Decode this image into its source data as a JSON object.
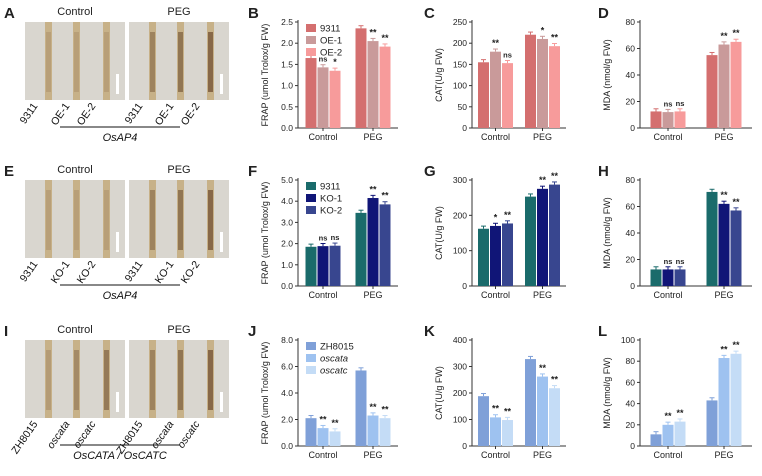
{
  "colors": {
    "rowA": [
      "#d46f6f",
      "#c99a9a",
      "#f79b9b"
    ],
    "rowE": [
      "#1a6b6b",
      "#101577",
      "#38468f"
    ],
    "rowI": [
      "#7fa0d8",
      "#9ec2f0",
      "#c4dcf6"
    ],
    "axis": "#333333",
    "photo_bg": "#d9d6cf",
    "strip_light": "#c4ad80",
    "strip_dark": "#7b5c3d"
  },
  "panels": {
    "A": {
      "letter": "A",
      "control_label": "Control",
      "peg_label": "PEG",
      "lines": [
        "9311",
        "OE-1",
        "OE-2"
      ],
      "gene": "OsAP4"
    },
    "E": {
      "letter": "E",
      "control_label": "Control",
      "peg_label": "PEG",
      "lines": [
        "9311",
        "KO-1",
        "KO-2"
      ],
      "gene": "OsAP4"
    },
    "I": {
      "letter": "I",
      "control_label": "Control",
      "peg_label": "PEG",
      "lines": [
        "ZH8015",
        "oscata",
        "oscatc"
      ],
      "gene": "OsCATA / OsCATC"
    }
  },
  "chart_data": [
    {
      "id": "B",
      "letter": "B",
      "type": "bar",
      "row": 0,
      "col": 0,
      "categories": [
        "Control",
        "PEG"
      ],
      "series": [
        {
          "name": "9311",
          "values": [
            1.65,
            2.35
          ]
        },
        {
          "name": "OE-1",
          "values": [
            1.43,
            2.05
          ]
        },
        {
          "name": "OE-2",
          "values": [
            1.35,
            1.92
          ]
        }
      ],
      "annotations": [
        [
          "",
          "ns",
          "*"
        ],
        [
          "",
          "**",
          "**"
        ]
      ],
      "ylabel": "FRAP (umol Trolox/g FW)",
      "ylim": [
        0,
        2.5
      ],
      "yticks": [
        "0.0",
        "0.5",
        "1.0",
        "1.5",
        "2.0",
        "2.5"
      ],
      "show_legend": true
    },
    {
      "id": "C",
      "letter": "C",
      "type": "bar",
      "row": 0,
      "col": 1,
      "categories": [
        "Control",
        "PEG"
      ],
      "series": [
        {
          "values": [
            155,
            220
          ]
        },
        {
          "values": [
            180,
            210
          ]
        },
        {
          "values": [
            153,
            193
          ]
        }
      ],
      "annotations": [
        [
          "",
          "**",
          "ns"
        ],
        [
          "",
          "*",
          "**"
        ]
      ],
      "ylabel": "CAT(U/g FW)",
      "ylim": [
        0,
        250
      ],
      "yticks": [
        "0",
        "50",
        "100",
        "150",
        "200",
        "250"
      ],
      "show_legend": false
    },
    {
      "id": "D",
      "letter": "D",
      "type": "bar",
      "row": 0,
      "col": 2,
      "categories": [
        "Control",
        "PEG"
      ],
      "series": [
        {
          "values": [
            12.5,
            55
          ]
        },
        {
          "values": [
            12,
            63
          ]
        },
        {
          "values": [
            12.5,
            65
          ]
        }
      ],
      "annotations": [
        [
          "",
          "ns",
          "ns"
        ],
        [
          "",
          "**",
          "**"
        ]
      ],
      "ylabel": "MDA (nmol/g FW)",
      "ylim": [
        0,
        80
      ],
      "yticks": [
        "0",
        "20",
        "40",
        "60",
        "80"
      ],
      "show_legend": false
    },
    {
      "id": "F",
      "letter": "F",
      "type": "bar",
      "row": 1,
      "col": 0,
      "categories": [
        "Control",
        "PEG"
      ],
      "series": [
        {
          "name": "9311",
          "values": [
            1.85,
            3.45
          ]
        },
        {
          "name": "KO-1",
          "values": [
            1.88,
            4.15
          ]
        },
        {
          "name": "KO-2",
          "values": [
            1.9,
            3.85
          ]
        }
      ],
      "annotations": [
        [
          "",
          "ns",
          "ns"
        ],
        [
          "",
          "**",
          "**"
        ]
      ],
      "ylabel": "FRAP (umol Trolox/g FW)",
      "ylim": [
        0,
        5
      ],
      "yticks": [
        "0.0",
        "1.0",
        "2.0",
        "3.0",
        "4.0",
        "5.0"
      ],
      "show_legend": true
    },
    {
      "id": "G",
      "letter": "G",
      "type": "bar",
      "row": 1,
      "col": 1,
      "categories": [
        "Control",
        "PEG"
      ],
      "series": [
        {
          "values": [
            162,
            253
          ]
        },
        {
          "values": [
            170,
            275
          ]
        },
        {
          "values": [
            177,
            287
          ]
        }
      ],
      "annotations": [
        [
          "",
          "*",
          "**"
        ],
        [
          "",
          "**",
          "**"
        ]
      ],
      "ylabel": "CAT(U/g FW)",
      "ylim": [
        0,
        300
      ],
      "yticks": [
        "0",
        "100",
        "200",
        "300"
      ],
      "show_legend": false
    },
    {
      "id": "H",
      "letter": "H",
      "type": "bar",
      "row": 1,
      "col": 2,
      "categories": [
        "Control",
        "PEG"
      ],
      "series": [
        {
          "values": [
            12.5,
            71
          ]
        },
        {
          "values": [
            12.5,
            62
          ]
        },
        {
          "values": [
            12.5,
            57
          ]
        }
      ],
      "annotations": [
        [
          "",
          "ns",
          "ns"
        ],
        [
          "",
          "**",
          "**"
        ]
      ],
      "ylabel": "MDA (nmol/g FW)",
      "ylim": [
        0,
        80
      ],
      "yticks": [
        "0",
        "20",
        "40",
        "60",
        "80"
      ],
      "show_legend": false
    },
    {
      "id": "J",
      "letter": "J",
      "type": "bar",
      "row": 2,
      "col": 0,
      "categories": [
        "Control",
        "PEG"
      ],
      "series": [
        {
          "name": "ZH8015",
          "values": [
            2.1,
            5.7
          ]
        },
        {
          "name": "oscata",
          "values": [
            1.35,
            2.3
          ]
        },
        {
          "name": "oscatc",
          "values": [
            1.1,
            2.1
          ]
        }
      ],
      "annotations": [
        [
          "",
          "**",
          "**"
        ],
        [
          "",
          "**",
          "**"
        ]
      ],
      "ylabel": "FRAP (umol Trolox/g FW)",
      "ylim": [
        0,
        8
      ],
      "yticks": [
        "0.0",
        "2.0",
        "4.0",
        "6.0",
        "8.0"
      ],
      "show_legend": true,
      "legend_italic": [
        false,
        true,
        true
      ]
    },
    {
      "id": "K",
      "letter": "K",
      "type": "bar",
      "row": 2,
      "col": 1,
      "categories": [
        "Control",
        "PEG"
      ],
      "series": [
        {
          "values": [
            188,
            328
          ]
        },
        {
          "values": [
            108,
            262
          ]
        },
        {
          "values": [
            98,
            218
          ]
        }
      ],
      "annotations": [
        [
          "",
          "**",
          "**"
        ],
        [
          "",
          "**",
          "**"
        ]
      ],
      "ylabel": "CAT(U/g FW)",
      "ylim": [
        0,
        400
      ],
      "yticks": [
        "0",
        "100",
        "200",
        "300",
        "400"
      ],
      "show_legend": false
    },
    {
      "id": "L",
      "letter": "L",
      "type": "bar",
      "row": 2,
      "col": 2,
      "categories": [
        "Control",
        "PEG"
      ],
      "series": [
        {
          "values": [
            11,
            43
          ]
        },
        {
          "values": [
            20,
            83
          ]
        },
        {
          "values": [
            23,
            87
          ]
        }
      ],
      "annotations": [
        [
          "",
          "**",
          "**"
        ],
        [
          "",
          "**",
          "**"
        ]
      ],
      "ylabel": "MDA (nmol/g FW)",
      "ylim": [
        0,
        100
      ],
      "yticks": [
        "0",
        "20",
        "40",
        "60",
        "80",
        "100"
      ],
      "show_legend": false
    }
  ]
}
